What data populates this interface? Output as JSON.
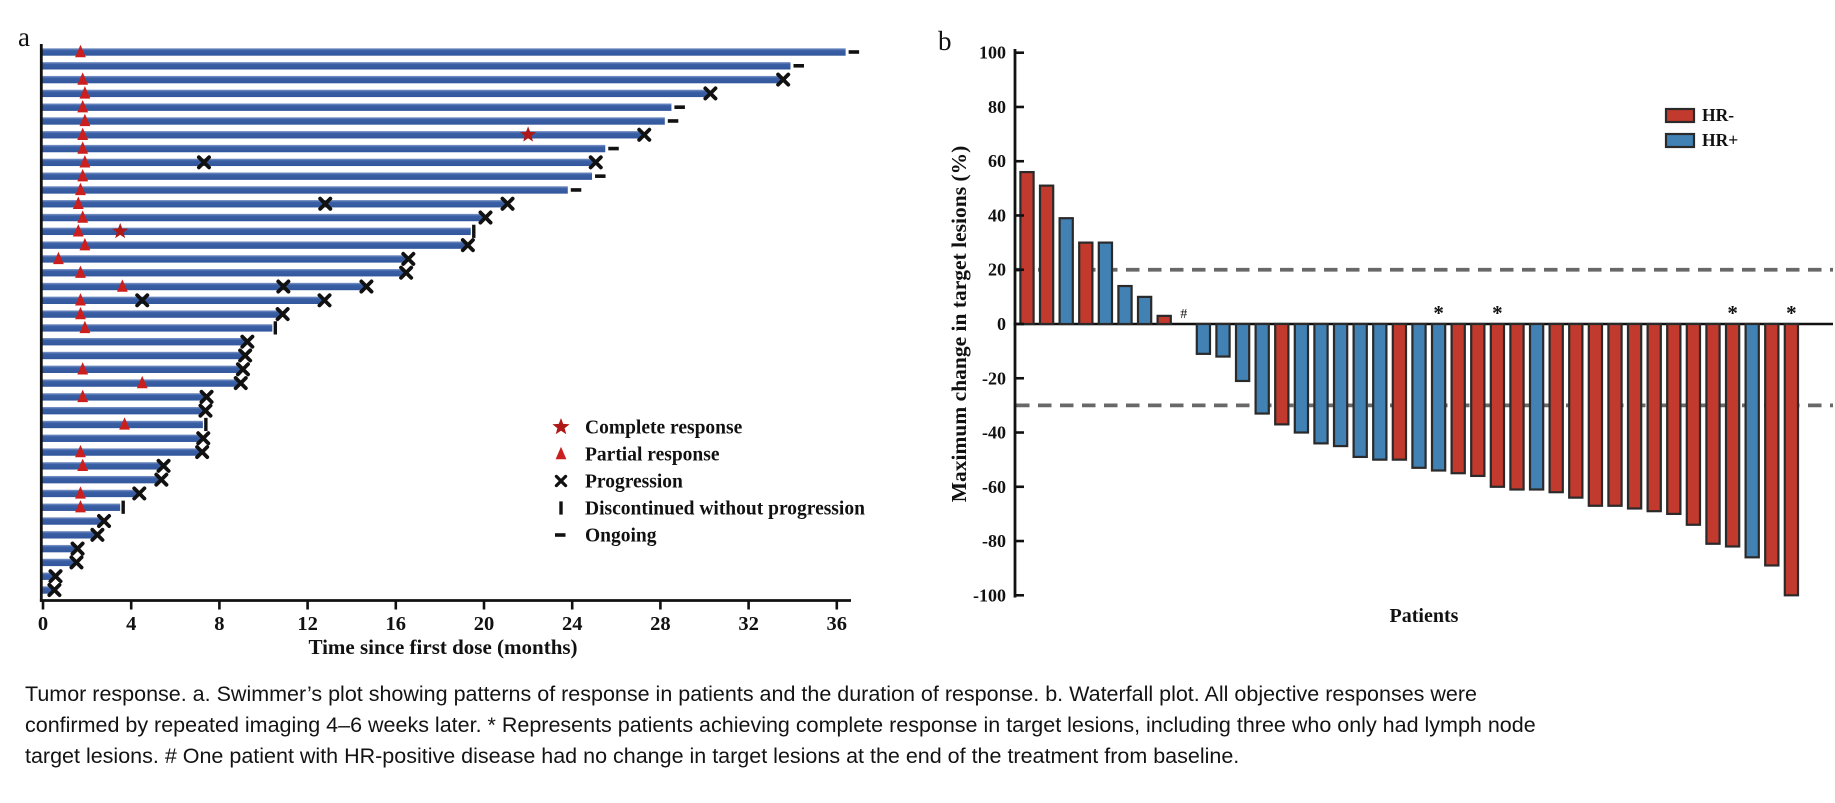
{
  "caption": "Tumor response. a. Swimmer’s plot showing patterns of response in patients and the duration of response. b. Waterfall plot. All objective responses were confirmed by repeated imaging 4–6 weeks later. * Represents patients achieving complete response in target lesions, including three who only had lymph node target lesions. # One patient with HR-positive disease had no change in target lesions at the end of the treatment from baseline.",
  "colors": {
    "swimmer_bar": "#3a5fa5",
    "swimmer_bar_light": "#8099ca",
    "swimmer_bar_dark": "#33579c",
    "triangle_red": "#cb1f1f",
    "star_red": "#ae1917",
    "marker_dark": "#111111",
    "axis": "#111111",
    "hr_neg": "#c13a2d",
    "hr_pos": "#4181b4",
    "bar_outline": "#2a2a2a",
    "dashed_line": "#686868"
  },
  "chart_data": [
    {
      "type": "swimmer",
      "panel_label": "a",
      "xlabel": "Time since first dose (months)",
      "x_ticks": [
        0,
        4,
        8,
        12,
        16,
        20,
        24,
        28,
        32,
        36
      ],
      "xlim": [
        0,
        36.8
      ],
      "legend": [
        {
          "marker": "star",
          "label": "Complete response"
        },
        {
          "marker": "triangle",
          "label": "Partial response"
        },
        {
          "marker": "x",
          "label": "Progression"
        },
        {
          "marker": "disc",
          "label": "Discontinued without progression"
        },
        {
          "marker": "dash",
          "label": "Ongoing"
        }
      ],
      "patients": [
        {
          "duration": 36.4,
          "partial": [
            1.7
          ],
          "complete": [],
          "progression": [],
          "end": "ongoing"
        },
        {
          "duration": 33.9,
          "partial": [],
          "complete": [],
          "progression": [],
          "end": "ongoing"
        },
        {
          "duration": 33.5,
          "partial": [
            1.8
          ],
          "complete": [],
          "progression": [],
          "end": "progression"
        },
        {
          "duration": 30.2,
          "partial": [
            1.9
          ],
          "complete": [],
          "progression": [],
          "end": "progression"
        },
        {
          "duration": 28.5,
          "partial": [
            1.8
          ],
          "complete": [],
          "progression": [],
          "end": "ongoing"
        },
        {
          "duration": 28.2,
          "partial": [
            1.9
          ],
          "complete": [],
          "progression": [],
          "end": "ongoing"
        },
        {
          "duration": 27.2,
          "partial": [
            1.8
          ],
          "complete": [
            22.0
          ],
          "progression": [],
          "end": "progression"
        },
        {
          "duration": 25.5,
          "partial": [
            1.8
          ],
          "complete": [],
          "progression": [],
          "end": "ongoing"
        },
        {
          "duration": 25.0,
          "partial": [
            1.9
          ],
          "complete": [],
          "progression": [
            7.3
          ],
          "end": "progression"
        },
        {
          "duration": 24.9,
          "partial": [
            1.8
          ],
          "complete": [],
          "progression": [],
          "end": "ongoing"
        },
        {
          "duration": 23.8,
          "partial": [
            1.7
          ],
          "complete": [],
          "progression": [],
          "end": "ongoing"
        },
        {
          "duration": 21.0,
          "partial": [
            1.6
          ],
          "complete": [],
          "progression": [
            12.8
          ],
          "end": "progression"
        },
        {
          "duration": 20.0,
          "partial": [
            1.8
          ],
          "complete": [],
          "progression": [],
          "end": "progression"
        },
        {
          "duration": 19.4,
          "partial": [
            1.6
          ],
          "complete": [
            3.5
          ],
          "progression": [],
          "end": "discontinued"
        },
        {
          "duration": 19.2,
          "partial": [
            1.9
          ],
          "complete": [],
          "progression": [],
          "end": "progression"
        },
        {
          "duration": 16.5,
          "partial": [
            0.7
          ],
          "complete": [],
          "progression": [],
          "end": "progression"
        },
        {
          "duration": 16.4,
          "partial": [
            1.7
          ],
          "complete": [],
          "progression": [],
          "end": "progression"
        },
        {
          "duration": 14.6,
          "partial": [
            3.6
          ],
          "complete": [],
          "progression": [
            10.9
          ],
          "end": "progression"
        },
        {
          "duration": 12.7,
          "partial": [
            1.7
          ],
          "complete": [],
          "progression": [
            4.5
          ],
          "end": "progression"
        },
        {
          "duration": 10.8,
          "partial": [
            1.7
          ],
          "complete": [],
          "progression": [],
          "end": "progression"
        },
        {
          "duration": 10.4,
          "partial": [
            1.9
          ],
          "complete": [],
          "progression": [],
          "end": "discontinued"
        },
        {
          "duration": 9.2,
          "partial": [],
          "complete": [],
          "progression": [],
          "end": "progression"
        },
        {
          "duration": 9.1,
          "partial": [],
          "complete": [],
          "progression": [],
          "end": "progression"
        },
        {
          "duration": 9.0,
          "partial": [
            1.8
          ],
          "complete": [],
          "progression": [],
          "end": "progression"
        },
        {
          "duration": 8.9,
          "partial": [
            4.5
          ],
          "complete": [],
          "progression": [],
          "end": "progression"
        },
        {
          "duration": 7.35,
          "partial": [
            1.8
          ],
          "complete": [],
          "progression": [],
          "end": "progression"
        },
        {
          "duration": 7.3,
          "partial": [],
          "complete": [],
          "progression": [],
          "end": "progression"
        },
        {
          "duration": 7.25,
          "partial": [
            3.7
          ],
          "complete": [],
          "progression": [],
          "end": "discontinued"
        },
        {
          "duration": 7.2,
          "partial": [],
          "complete": [],
          "progression": [],
          "end": "progression"
        },
        {
          "duration": 7.15,
          "partial": [
            1.7
          ],
          "complete": [],
          "progression": [],
          "end": "progression"
        },
        {
          "duration": 5.4,
          "partial": [
            1.8
          ],
          "complete": [],
          "progression": [],
          "end": "progression"
        },
        {
          "duration": 5.3,
          "partial": [],
          "complete": [],
          "progression": [],
          "end": "progression"
        },
        {
          "duration": 4.3,
          "partial": [
            1.7
          ],
          "complete": [],
          "progression": [],
          "end": "progression"
        },
        {
          "duration": 3.5,
          "partial": [
            1.7
          ],
          "complete": [],
          "progression": [],
          "end": "discontinued"
        },
        {
          "duration": 2.7,
          "partial": [],
          "complete": [],
          "progression": [],
          "end": "progression"
        },
        {
          "duration": 2.4,
          "partial": [],
          "complete": [],
          "progression": [],
          "end": "progression"
        },
        {
          "duration": 1.5,
          "partial": [],
          "complete": [],
          "progression": [],
          "end": "progression"
        },
        {
          "duration": 1.45,
          "partial": [],
          "complete": [],
          "progression": [],
          "end": "progression"
        },
        {
          "duration": 0.5,
          "partial": [],
          "complete": [],
          "progression": [],
          "end": "progression"
        },
        {
          "duration": 0.45,
          "partial": [],
          "complete": [],
          "progression": [],
          "end": "progression"
        }
      ]
    },
    {
      "type": "waterfall",
      "panel_label": "b",
      "ylabel": "Maximum change in target lesions (%)",
      "xlabel": "Patients",
      "ylim": [
        -100,
        100
      ],
      "y_ticks": [
        100,
        80,
        60,
        40,
        20,
        0,
        -20,
        -40,
        -60,
        -80,
        -100
      ],
      "reference_lines": [
        20,
        -30
      ],
      "legend": [
        {
          "label": "HR-",
          "group": "HR-"
        },
        {
          "label": "HR+",
          "group": "HR+"
        }
      ],
      "patients": [
        {
          "value": 56,
          "group": "HR-",
          "flag": ""
        },
        {
          "value": 51,
          "group": "HR-",
          "flag": ""
        },
        {
          "value": 39,
          "group": "HR+",
          "flag": ""
        },
        {
          "value": 30,
          "group": "HR-",
          "flag": ""
        },
        {
          "value": 30,
          "group": "HR+",
          "flag": ""
        },
        {
          "value": 14,
          "group": "HR+",
          "flag": ""
        },
        {
          "value": 10,
          "group": "HR+",
          "flag": ""
        },
        {
          "value": 3,
          "group": "HR-",
          "flag": ""
        },
        {
          "value": 0,
          "group": "HR+",
          "flag": "#"
        },
        {
          "value": -11,
          "group": "HR+",
          "flag": ""
        },
        {
          "value": -12,
          "group": "HR+",
          "flag": ""
        },
        {
          "value": -21,
          "group": "HR+",
          "flag": ""
        },
        {
          "value": -33,
          "group": "HR+",
          "flag": ""
        },
        {
          "value": -37,
          "group": "HR-",
          "flag": ""
        },
        {
          "value": -40,
          "group": "HR+",
          "flag": ""
        },
        {
          "value": -44,
          "group": "HR+",
          "flag": ""
        },
        {
          "value": -45,
          "group": "HR+",
          "flag": ""
        },
        {
          "value": -49,
          "group": "HR+",
          "flag": ""
        },
        {
          "value": -50,
          "group": "HR+",
          "flag": ""
        },
        {
          "value": -50,
          "group": "HR-",
          "flag": ""
        },
        {
          "value": -53,
          "group": "HR+",
          "flag": ""
        },
        {
          "value": -54,
          "group": "HR+",
          "flag": "*"
        },
        {
          "value": -55,
          "group": "HR-",
          "flag": ""
        },
        {
          "value": -56,
          "group": "HR-",
          "flag": ""
        },
        {
          "value": -60,
          "group": "HR-",
          "flag": "*"
        },
        {
          "value": -61,
          "group": "HR-",
          "flag": ""
        },
        {
          "value": -61,
          "group": "HR+",
          "flag": ""
        },
        {
          "value": -62,
          "group": "HR-",
          "flag": ""
        },
        {
          "value": -64,
          "group": "HR-",
          "flag": ""
        },
        {
          "value": -67,
          "group": "HR-",
          "flag": ""
        },
        {
          "value": -67,
          "group": "HR-",
          "flag": ""
        },
        {
          "value": -68,
          "group": "HR-",
          "flag": ""
        },
        {
          "value": -69,
          "group": "HR-",
          "flag": ""
        },
        {
          "value": -70,
          "group": "HR-",
          "flag": ""
        },
        {
          "value": -74,
          "group": "HR-",
          "flag": ""
        },
        {
          "value": -81,
          "group": "HR-",
          "flag": ""
        },
        {
          "value": -82,
          "group": "HR-",
          "flag": "*"
        },
        {
          "value": -86,
          "group": "HR+",
          "flag": ""
        },
        {
          "value": -89,
          "group": "HR-",
          "flag": ""
        },
        {
          "value": -100,
          "group": "HR-",
          "flag": "*"
        }
      ]
    }
  ]
}
